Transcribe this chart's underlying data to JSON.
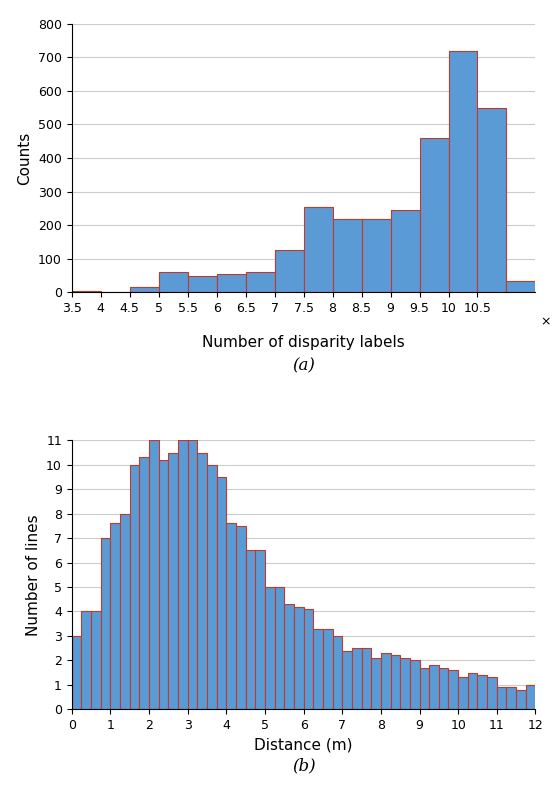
{
  "chart_a": {
    "counts": [
      3,
      0,
      15,
      60,
      50,
      55,
      60,
      125,
      255,
      220,
      220,
      245,
      460,
      720,
      550,
      35
    ],
    "bin_start": 35000,
    "bin_width": 5000,
    "bar_color": "#5b9bd5",
    "edge_color": "#c0392b",
    "edge_linewidth": 0.8,
    "ylabel": "Counts",
    "xlabel": "Number of disparity labels",
    "xtick_positions": [
      35000,
      40000,
      45000,
      50000,
      55000,
      60000,
      65000,
      70000,
      75000,
      80000,
      85000,
      90000,
      95000,
      100000,
      105000
    ],
    "xtick_labels": [
      "3.5",
      "4",
      "4.5",
      "5",
      "5.5",
      "6",
      "6.5",
      "7",
      "7.5",
      "8",
      "8.5",
      "9",
      "9.5",
      "10",
      "10.5"
    ],
    "ylim": [
      0,
      800
    ],
    "yticks": [
      0,
      100,
      200,
      300,
      400,
      500,
      600,
      700,
      800
    ],
    "subtitle": "(a)",
    "grid_color": "#cccccc",
    "grid_linewidth": 0.8
  },
  "chart_b": {
    "bin_start": 0.0,
    "bin_width": 0.25,
    "counts": [
      3,
      4,
      4,
      7,
      7.6,
      8,
      10,
      10.3,
      11,
      10.2,
      10.5,
      11,
      11,
      10.5,
      10,
      9.5,
      7.6,
      7.5,
      6.5,
      6.5,
      5,
      5,
      4.3,
      4.2,
      4.1,
      3.3,
      3.3,
      3.0,
      2.4,
      2.5,
      2.5,
      2.1,
      2.3,
      2.2,
      2.1,
      2.0,
      1.7,
      1.8,
      1.7,
      1.6,
      1.3,
      1.5,
      1.4,
      1.3,
      0.9,
      0.9,
      0.8,
      1.0
    ],
    "bar_color": "#5b9bd5",
    "edge_color": "#c0392b",
    "edge_linewidth": 0.8,
    "ylabel": "Number of lines",
    "xlabel": "Distance (m)",
    "xlim": [
      0,
      12
    ],
    "ylim": [
      0,
      11
    ],
    "yticks": [
      0,
      1,
      2,
      3,
      4,
      5,
      6,
      7,
      8,
      9,
      10,
      11
    ],
    "xticks": [
      0,
      1,
      2,
      3,
      4,
      5,
      6,
      7,
      8,
      9,
      10,
      11,
      12
    ],
    "xtick_labels": [
      "0",
      "1",
      "2",
      "3",
      "4",
      "5",
      "6",
      "7",
      "8",
      "9",
      "10",
      "11",
      "12"
    ],
    "subtitle": "(b)",
    "grid_color": "#cccccc",
    "grid_linewidth": 0.8
  },
  "background_color": "#ffffff",
  "figure_width": 5.52,
  "figure_height": 7.88,
  "dpi": 100
}
